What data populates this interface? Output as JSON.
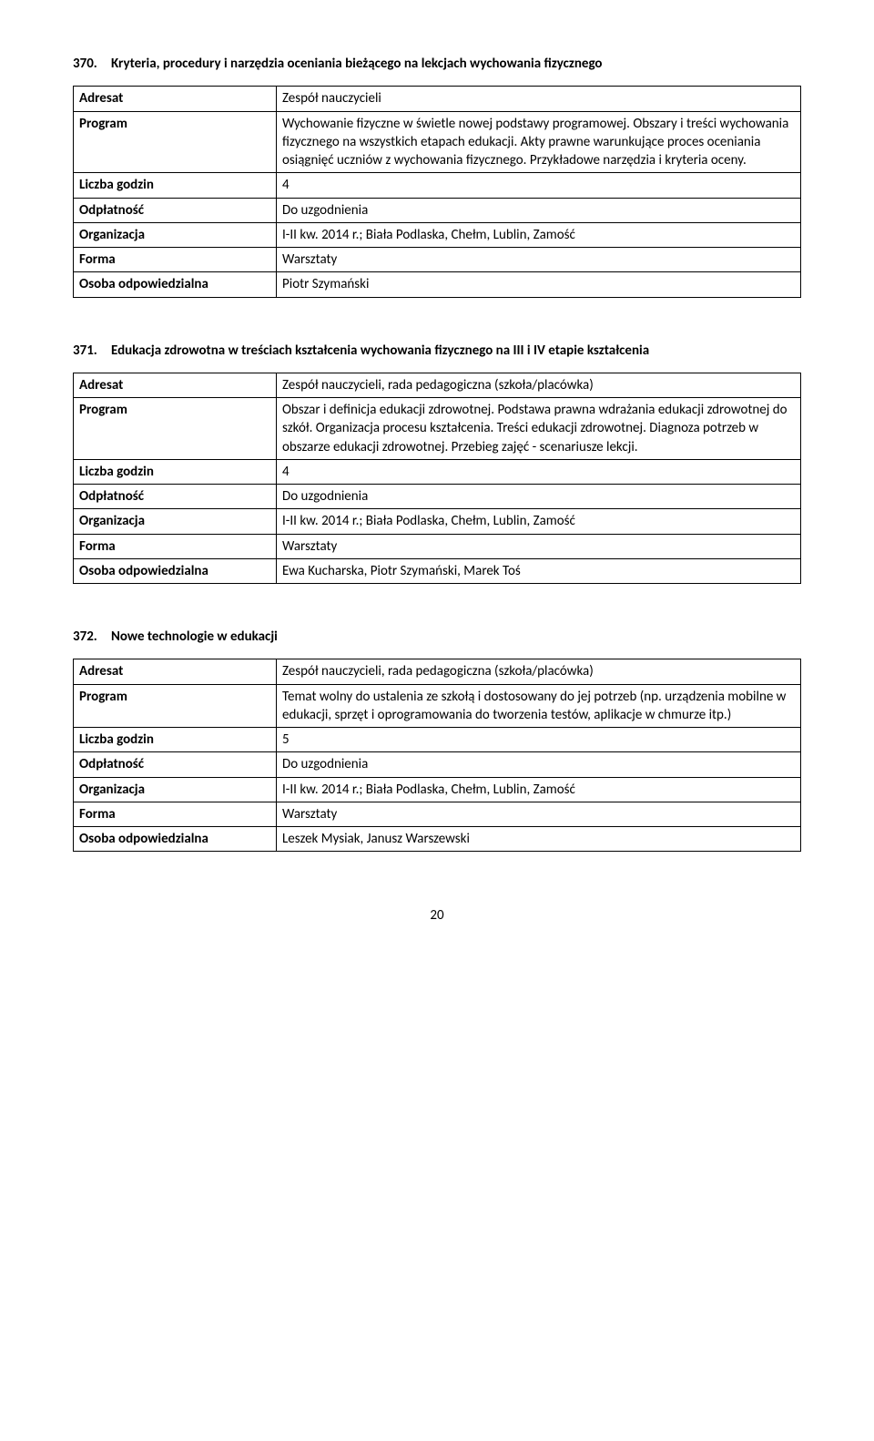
{
  "sections": [
    {
      "number": "370.",
      "title": "Kryteria, procedury i narzędzia oceniania bieżącego na lekcjach wychowania fizycznego",
      "rows": [
        {
          "label": "Adresat",
          "value": "Zespół nauczycieli"
        },
        {
          "label": "Program",
          "value": "Wychowanie fizyczne w świetle nowej podstawy programowej. Obszary i treści wychowania fizycznego na wszystkich etapach edukacji. Akty prawne warunkujące proces oceniania osiągnięć uczniów z wychowania fizycznego. Przykładowe narzędzia i kryteria oceny."
        },
        {
          "label": "Liczba godzin",
          "value": "4"
        },
        {
          "label": "Odpłatność",
          "value": "Do uzgodnienia"
        },
        {
          "label": "Organizacja",
          "value": "I-II kw. 2014 r.; Biała Podlaska, Chełm, Lublin, Zamość"
        },
        {
          "label": "Forma",
          "value": "Warsztaty"
        },
        {
          "label": "Osoba odpowiedzialna",
          "value": "Piotr Szymański"
        }
      ]
    },
    {
      "number": "371.",
      "title": "Edukacja zdrowotna w treściach kształcenia wychowania fizycznego na III i IV etapie kształcenia",
      "rows": [
        {
          "label": "Adresat",
          "value": "Zespół nauczycieli, rada pedagogiczna (szkoła/placówka)"
        },
        {
          "label": "Program",
          "value": "Obszar i definicja edukacji zdrowotnej. Podstawa prawna wdrażania edukacji zdrowotnej do szkół. Organizacja procesu kształcenia. Treści edukacji zdrowotnej. Diagnoza potrzeb w obszarze edukacji zdrowotnej. Przebieg zajęć - scenariusze lekcji."
        },
        {
          "label": "Liczba godzin",
          "value": "4"
        },
        {
          "label": "Odpłatność",
          "value": "Do uzgodnienia"
        },
        {
          "label": "Organizacja",
          "value": "I-II kw. 2014 r.; Biała Podlaska, Chełm, Lublin, Zamość"
        },
        {
          "label": "Forma",
          "value": "Warsztaty"
        },
        {
          "label": "Osoba odpowiedzialna",
          "value": "Ewa Kucharska, Piotr Szymański, Marek Toś"
        }
      ]
    },
    {
      "number": "372.",
      "title": "Nowe technologie w edukacji",
      "rows": [
        {
          "label": "Adresat",
          "value": "Zespół nauczycieli, rada pedagogiczna (szkoła/placówka)"
        },
        {
          "label": "Program",
          "value": "Temat wolny do ustalenia ze szkołą i dostosowany do jej potrzeb (np. urządzenia mobilne w edukacji, sprzęt i oprogramowania do tworzenia testów, aplikacje w chmurze itp.)"
        },
        {
          "label": "Liczba godzin",
          "value": "5"
        },
        {
          "label": "Odpłatność",
          "value": "Do uzgodnienia"
        },
        {
          "label": "Organizacja",
          "value": "I-II kw. 2014 r.; Biała Podlaska, Chełm, Lublin, Zamość"
        },
        {
          "label": "Forma",
          "value": "Warsztaty"
        },
        {
          "label": "Osoba odpowiedzialna",
          "value": "Leszek Mysiak, Janusz Warszewski"
        }
      ]
    }
  ],
  "pageNumber": "20"
}
